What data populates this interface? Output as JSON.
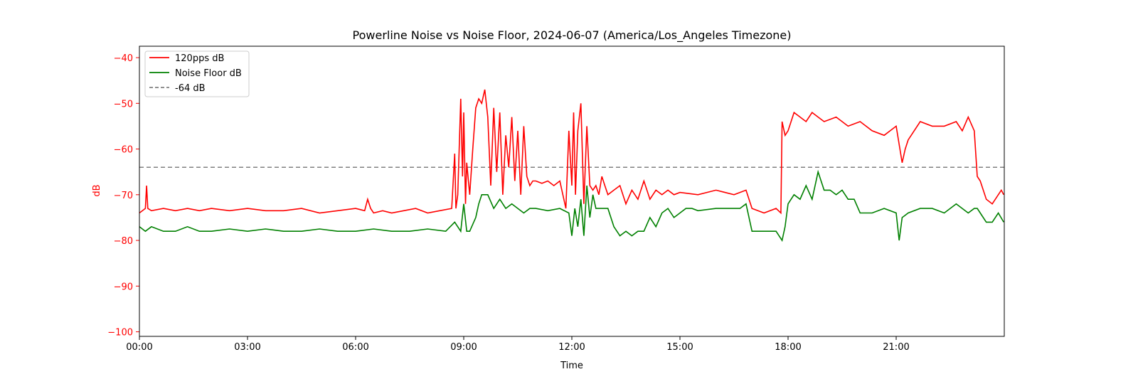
{
  "chart_data": {
    "type": "line",
    "title": "Powerline Noise vs Noise Floor, 2024-06-07 (America/Los_Angeles Timezone)",
    "xlabel": "Time",
    "ylabel": "dB",
    "xlim": [
      "00:00",
      "24:00"
    ],
    "ylim": [
      -101,
      -37.5
    ],
    "x_ticks": [
      "00:00",
      "03:00",
      "06:00",
      "09:00",
      "12:00",
      "15:00",
      "18:00",
      "21:00"
    ],
    "y_ticks": [
      -40,
      -50,
      -60,
      -70,
      -80,
      -90,
      -100
    ],
    "y_tick_labels": [
      "−40",
      "−50",
      "−60",
      "−70",
      "−80",
      "−90",
      "−100"
    ],
    "grid": false,
    "legend_position": "top-left",
    "colors": {
      "axis_accent": "#ff0000",
      "threshold": "#808080"
    },
    "threshold": {
      "name": "-64 dB",
      "value": -64,
      "color": "#808080"
    },
    "series": [
      {
        "name": "120pps dB",
        "color": "#ff0000",
        "x": [
          "00:00",
          "00:10",
          "00:12",
          "00:14",
          "00:20",
          "00:40",
          "01:00",
          "01:20",
          "01:40",
          "02:00",
          "02:30",
          "03:00",
          "03:30",
          "04:00",
          "04:30",
          "05:00",
          "05:30",
          "06:00",
          "06:15",
          "06:20",
          "06:25",
          "06:30",
          "06:45",
          "07:00",
          "07:20",
          "07:40",
          "08:00",
          "08:20",
          "08:40",
          "08:45",
          "08:47",
          "08:50",
          "08:55",
          "08:58",
          "09:00",
          "09:03",
          "09:05",
          "09:10",
          "09:15",
          "09:20",
          "09:25",
          "09:30",
          "09:35",
          "09:40",
          "09:45",
          "09:50",
          "09:55",
          "10:00",
          "10:05",
          "10:10",
          "10:15",
          "10:20",
          "10:25",
          "10:30",
          "10:35",
          "10:40",
          "10:45",
          "10:50",
          "10:55",
          "11:00",
          "11:10",
          "11:20",
          "11:30",
          "11:40",
          "11:50",
          "11:55",
          "12:00",
          "12:03",
          "12:06",
          "12:10",
          "12:15",
          "12:20",
          "12:25",
          "12:30",
          "12:35",
          "12:40",
          "12:45",
          "12:50",
          "12:55",
          "13:00",
          "13:10",
          "13:20",
          "13:30",
          "13:40",
          "13:50",
          "14:00",
          "14:10",
          "14:20",
          "14:30",
          "14:40",
          "14:50",
          "15:00",
          "15:30",
          "16:00",
          "16:30",
          "16:50",
          "17:00",
          "17:20",
          "17:40",
          "17:48",
          "17:50",
          "17:55",
          "18:00",
          "18:10",
          "18:20",
          "18:30",
          "18:40",
          "18:50",
          "19:00",
          "19:20",
          "19:40",
          "20:00",
          "20:20",
          "20:40",
          "21:00",
          "21:10",
          "21:15",
          "21:20",
          "21:30",
          "21:40",
          "22:00",
          "22:20",
          "22:40",
          "22:50",
          "23:00",
          "23:10",
          "23:15",
          "23:20",
          "23:30",
          "23:40",
          "23:55",
          "23:59"
        ],
        "values": [
          -74,
          -73,
          -68,
          -73,
          -73.5,
          -73,
          -73.5,
          -73,
          -73.5,
          -73,
          -73.5,
          -73,
          -73.5,
          -73.5,
          -73,
          -74,
          -73.5,
          -73,
          -73.5,
          -71,
          -73,
          -74,
          -73.5,
          -74,
          -73.5,
          -73,
          -74,
          -73.5,
          -73,
          -61,
          -73,
          -70,
          -49,
          -66,
          -52,
          -72,
          -63,
          -70,
          -60,
          -51,
          -49,
          -50,
          -47,
          -53,
          -68,
          -51,
          -65,
          -52,
          -70,
          -57,
          -64,
          -53,
          -67,
          -56,
          -70,
          -55,
          -66,
          -68,
          -67,
          -67,
          -67.5,
          -67,
          -68,
          -67,
          -73,
          -56,
          -68,
          -52,
          -70,
          -56,
          -50,
          -72,
          -55,
          -68,
          -69,
          -68,
          -70,
          -66,
          -68,
          -70,
          -69,
          -68,
          -72,
          -69,
          -71,
          -67,
          -71,
          -69,
          -70,
          -69,
          -70,
          -69.5,
          -70,
          -69,
          -70,
          -69,
          -73,
          -74,
          -73,
          -74,
          -54,
          -57,
          -56,
          -52,
          -53,
          -54,
          -52,
          -53,
          -54,
          -53,
          -55,
          -54,
          -56,
          -57,
          -55,
          -63,
          -60,
          -58,
          -56,
          -54,
          -55,
          -55,
          -54,
          -56,
          -53,
          -56,
          -66,
          -67,
          -71,
          -72,
          -69,
          -70
        ]
      },
      {
        "name": "Noise Floor dB",
        "color": "#008000",
        "x": [
          "00:00",
          "00:10",
          "00:20",
          "00:40",
          "01:00",
          "01:20",
          "01:40",
          "02:00",
          "02:30",
          "03:00",
          "03:30",
          "04:00",
          "04:30",
          "05:00",
          "05:30",
          "06:00",
          "06:30",
          "07:00",
          "07:30",
          "08:00",
          "08:30",
          "08:45",
          "08:55",
          "09:00",
          "09:05",
          "09:10",
          "09:20",
          "09:25",
          "09:30",
          "09:40",
          "09:50",
          "10:00",
          "10:10",
          "10:20",
          "10:30",
          "10:40",
          "10:50",
          "11:00",
          "11:20",
          "11:40",
          "11:55",
          "12:00",
          "12:05",
          "12:10",
          "12:15",
          "12:20",
          "12:25",
          "12:30",
          "12:35",
          "12:40",
          "12:50",
          "13:00",
          "13:10",
          "13:20",
          "13:30",
          "13:40",
          "13:50",
          "14:00",
          "14:10",
          "14:20",
          "14:30",
          "14:40",
          "14:50",
          "15:00",
          "15:10",
          "15:20",
          "15:30",
          "16:00",
          "16:30",
          "16:40",
          "16:50",
          "17:00",
          "17:20",
          "17:40",
          "17:50",
          "17:55",
          "18:00",
          "18:10",
          "18:20",
          "18:30",
          "18:40",
          "18:50",
          "19:00",
          "19:10",
          "19:20",
          "19:30",
          "19:40",
          "19:50",
          "20:00",
          "20:20",
          "20:40",
          "21:00",
          "21:05",
          "21:10",
          "21:20",
          "21:40",
          "22:00",
          "22:20",
          "22:40",
          "23:00",
          "23:10",
          "23:15",
          "23:20",
          "23:30",
          "23:40",
          "23:50",
          "23:59"
        ],
        "values": [
          -77,
          -78,
          -77,
          -78,
          -78,
          -77,
          -78,
          -78,
          -77.5,
          -78,
          -77.5,
          -78,
          -78,
          -77.5,
          -78,
          -78,
          -77.5,
          -78,
          -78,
          -77.5,
          -78,
          -76,
          -78,
          -72,
          -78,
          -78,
          -75,
          -72,
          -70,
          -70,
          -73,
          -71,
          -73,
          -72,
          -73,
          -74,
          -73,
          -73,
          -73.5,
          -73,
          -74,
          -79,
          -73,
          -77,
          -71,
          -79,
          -68,
          -75,
          -70,
          -73,
          -73,
          -73,
          -77,
          -79,
          -78,
          -79,
          -78,
          -78,
          -75,
          -77,
          -74,
          -73,
          -75,
          -74,
          -73,
          -73,
          -73.5,
          -73,
          -73,
          -73,
          -72,
          -78,
          -78,
          -78,
          -80,
          -77,
          -72,
          -70,
          -71,
          -68,
          -71,
          -65,
          -69,
          -69,
          -70,
          -69,
          -71,
          -71,
          -74,
          -74,
          -73,
          -74,
          -80,
          -75,
          -74,
          -73,
          -73,
          -74,
          -72,
          -74,
          -73,
          -73,
          -74,
          -76,
          -76,
          -74,
          -76
        ]
      }
    ]
  }
}
